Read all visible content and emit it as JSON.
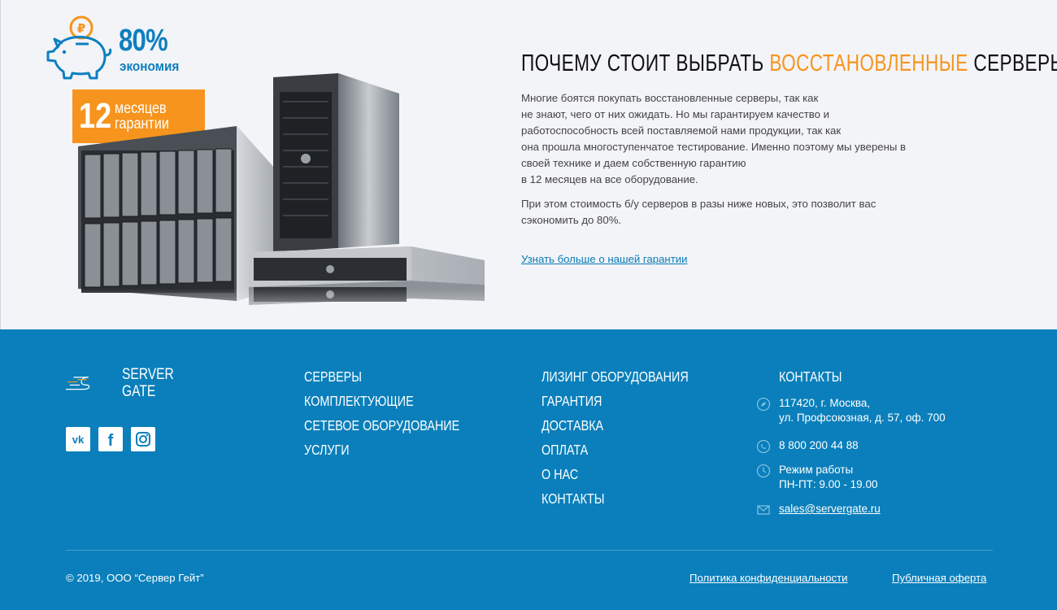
{
  "promo": {
    "percent": "80%",
    "economy_label": "экономия",
    "warranty_number": "12",
    "warranty_line1": "месяцев",
    "warranty_line2": "гарантии"
  },
  "article": {
    "heading_prefix": "ПОЧЕМУ СТОИТ ВЫБРАТЬ ",
    "heading_accent": "ВОССТАНОВЛЕННЫЕ",
    "heading_suffix": " СЕРВЕРЫ",
    "paragraph1_lines": [
      "Многие боятся покупать восстановленные серверы, так как",
      "не знают, чего от них ожидать. Но мы гарантируем качество и",
      "работоспособность всей поставляемой нами продукции, так как",
      "она прошла многоступенчатое тестирование. Именно поэтому мы уверены в",
      "своей технике и даем собственную гарантию",
      "в 12 месяцев на все оборудование."
    ],
    "paragraph2_lines": [
      "При этом стоимость б/у серверов в разы ниже новых, это позволит вас",
      "сэкономить до 80%."
    ],
    "more_link": "Узнать больше о нашей гарантии"
  },
  "footer": {
    "logo_line1": "SERVER",
    "logo_line2": "GATE",
    "social": [
      "vk-icon",
      "facebook-icon",
      "instagram-icon"
    ],
    "nav_col1": [
      "СЕРВЕРЫ",
      "КОМПЛЕКТУЮЩИЕ",
      "СЕТЕВОЕ ОБОРУДОВАНИЕ",
      "УСЛУГИ"
    ],
    "nav_col2": [
      "ЛИЗИНГ ОБОРУДОВАНИЯ",
      "ГАРАНТИЯ",
      "ДОСТАВКА",
      "ОПЛАТА",
      "О НАС",
      "КОНТАКТЫ"
    ],
    "contacts_title": "КОНТАКТЫ",
    "address_line1": "117420, г. Москва,",
    "address_line2": "ул. Профсоюзная, д. 57, оф. 700",
    "phone": "8 800 200 44 88",
    "hours_line1": "Режим работы",
    "hours_line2": "ПН-ПТ: 9.00 - 19.00",
    "email": "sales@servergate.ru",
    "copyright": "© 2019, ООО “Сервер Гейт”",
    "privacy_link": "Политика конфиденциальности",
    "offer_link": "Публичная оферта"
  },
  "colors": {
    "accent_orange": "#f7941d",
    "brand_blue": "#0a7fbb",
    "link_blue": "#0b7bb5"
  }
}
